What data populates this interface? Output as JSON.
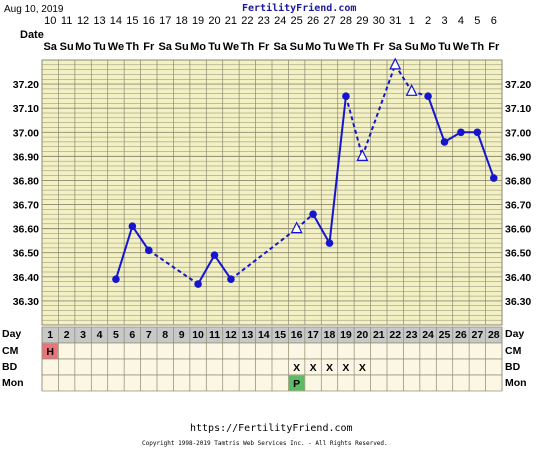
{
  "header": {
    "date_text": "Aug 10, 2019",
    "site_title": "FertilityFriend.com"
  },
  "footer": {
    "url": "https://FertilityFriend.com",
    "copyright": "Copyright 1998-2019 Tamtris Web Services Inc. - All Rights Reserved."
  },
  "labels": {
    "date_row": "Date",
    "day_row": "Day",
    "cm_row": "CM",
    "bd_row": "BD",
    "mon_row": "Mon"
  },
  "colors": {
    "grid_bg": "#f3f0c4",
    "grid_line": "#8a8a70",
    "line": "#1515d0",
    "day_row_bg": "#c8c8c8",
    "cm_h": "#e8737a",
    "mon_p": "#5dbb63",
    "lower_bg": "#fbf7e4"
  },
  "chart_data": {
    "type": "line",
    "title": "",
    "dates": [
      "10",
      "11",
      "12",
      "13",
      "14",
      "15",
      "16",
      "17",
      "18",
      "19",
      "20",
      "21",
      "22",
      "23",
      "24",
      "25",
      "26",
      "27",
      "28",
      "29",
      "30",
      "31",
      "1",
      "2",
      "3",
      "4",
      "5",
      "6"
    ],
    "weekdays": [
      "Sa",
      "Su",
      "Mo",
      "Tu",
      "We",
      "Th",
      "Fr",
      "Sa",
      "Su",
      "Mo",
      "Tu",
      "We",
      "Th",
      "Fr",
      "Sa",
      "Su",
      "Mo",
      "Tu",
      "We",
      "Th",
      "Fr",
      "Sa",
      "Su",
      "Mo",
      "Tu",
      "We",
      "Th",
      "Fr"
    ],
    "days": [
      "1",
      "2",
      "3",
      "4",
      "5",
      "6",
      "7",
      "8",
      "9",
      "10",
      "11",
      "12",
      "13",
      "14",
      "15",
      "16",
      "17",
      "18",
      "19",
      "20",
      "21",
      "22",
      "23",
      "24",
      "25",
      "26",
      "27",
      "28"
    ],
    "yticks": [
      "37.20",
      "37.10",
      "37.00",
      "36.90",
      "36.80",
      "36.70",
      "36.60",
      "36.50",
      "36.40",
      "36.30"
    ],
    "ylim": [
      36.2,
      37.3
    ],
    "temps": [
      null,
      null,
      null,
      null,
      36.39,
      36.61,
      36.51,
      null,
      null,
      36.37,
      36.49,
      36.39,
      null,
      null,
      null,
      36.6,
      36.66,
      36.54,
      37.15,
      36.9,
      null,
      37.28,
      37.17,
      37.15,
      36.96,
      37.0,
      37.0,
      36.81
    ],
    "open_points": [
      16,
      20,
      22,
      23
    ],
    "cm": [
      "H",
      "",
      "",
      "",
      "",
      "",
      "",
      "",
      "",
      "",
      "",
      "",
      "",
      "",
      "",
      "",
      "",
      "",
      "",
      "",
      "",
      "",
      "",
      "",
      "",
      "",
      "",
      ""
    ],
    "bd": [
      "",
      "",
      "",
      "",
      "",
      "",
      "",
      "",
      "",
      "",
      "",
      "",
      "",
      "",
      "",
      "X",
      "X",
      "X",
      "X",
      "X",
      "",
      "",
      "",
      "",
      "",
      "",
      "",
      ""
    ],
    "mon": [
      "",
      "",
      "",
      "",
      "",
      "",
      "",
      "",
      "",
      "",
      "",
      "",
      "",
      "",
      "",
      "P",
      "",
      "",
      "",
      "",
      "",
      "",
      "",
      "",
      "",
      "",
      "",
      ""
    ]
  }
}
